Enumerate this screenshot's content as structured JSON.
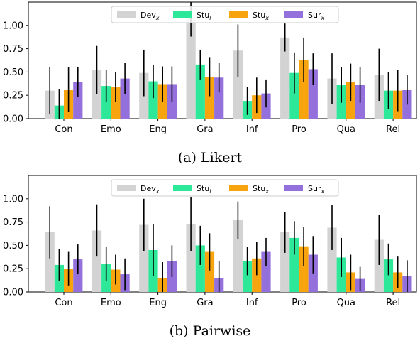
{
  "colors": {
    "Dev": "#d3d3d3",
    "Stu_l": "#2ee89a",
    "Stu_x": "#f7a40f",
    "Sur": "#9370db",
    "error": "#000000"
  },
  "chart_data": [
    {
      "type": "bar",
      "caption": "(a) Likert",
      "categories": [
        "Con",
        "Emo",
        "Eng",
        "Gra",
        "Inf",
        "Pro",
        "Qua",
        "Rel"
      ],
      "ylim": [
        0,
        1.25
      ],
      "yticks": [
        "0.00",
        "0.25",
        "0.50",
        "0.75",
        "1.00"
      ],
      "grid": false,
      "legend_position": "top-center",
      "series": [
        {
          "name": "Dev",
          "sub": "x",
          "color_key": "Dev",
          "values": [
            0.3,
            0.52,
            0.49,
            1.09,
            0.73,
            0.87,
            0.43,
            0.47
          ],
          "errors": [
            0.25,
            0.26,
            0.25,
            0.21,
            0.28,
            0.15,
            0.27,
            0.28
          ]
        },
        {
          "name": "Stu",
          "sub": "l",
          "color_key": "Stu_l",
          "values": [
            0.14,
            0.35,
            0.4,
            0.58,
            0.19,
            0.49,
            0.36,
            0.3
          ],
          "errors": [
            0.18,
            0.17,
            0.18,
            0.16,
            0.15,
            0.22,
            0.19,
            0.2
          ]
        },
        {
          "name": "Stu",
          "sub": "x",
          "color_key": "Stu_x",
          "values": [
            0.31,
            0.34,
            0.37,
            0.45,
            0.25,
            0.63,
            0.39,
            0.3
          ],
          "errors": [
            0.24,
            0.16,
            0.19,
            0.21,
            0.19,
            0.24,
            0.2,
            0.22
          ]
        },
        {
          "name": "Sur",
          "sub": "x",
          "color_key": "Sur",
          "values": [
            0.39,
            0.43,
            0.37,
            0.44,
            0.27,
            0.53,
            0.36,
            0.31
          ],
          "errors": [
            0.16,
            0.17,
            0.19,
            0.16,
            0.15,
            0.17,
            0.19,
            0.16
          ]
        }
      ]
    },
    {
      "type": "bar",
      "caption": "(b) Pairwise",
      "categories": [
        "Con",
        "Emo",
        "Eng",
        "Gra",
        "Inf",
        "Pro",
        "Qua",
        "Rel"
      ],
      "ylim": [
        0,
        1.25
      ],
      "yticks": [
        "0.00",
        "0.25",
        "0.50",
        "0.75",
        "1.00"
      ],
      "grid": false,
      "legend_position": "top-center",
      "series": [
        {
          "name": "Dev",
          "sub": "x",
          "color_key": "Dev",
          "values": [
            0.64,
            0.66,
            0.72,
            0.73,
            0.77,
            0.64,
            0.69,
            0.56
          ],
          "errors": [
            0.28,
            0.28,
            0.28,
            0.29,
            0.2,
            0.22,
            0.24,
            0.27
          ]
        },
        {
          "name": "Stu",
          "sub": "l",
          "color_key": "Stu_l",
          "values": [
            0.29,
            0.3,
            0.45,
            0.5,
            0.33,
            0.58,
            0.37,
            0.35
          ],
          "errors": [
            0.17,
            0.18,
            0.28,
            0.21,
            0.15,
            0.18,
            0.21,
            0.17
          ]
        },
        {
          "name": "Stu",
          "sub": "x",
          "color_key": "Stu_x",
          "values": [
            0.25,
            0.24,
            0.15,
            0.43,
            0.36,
            0.49,
            0.21,
            0.21
          ],
          "errors": [
            0.18,
            0.16,
            0.17,
            0.2,
            0.18,
            0.21,
            0.19,
            0.17
          ]
        },
        {
          "name": "Sur",
          "sub": "x",
          "color_key": "Sur",
          "values": [
            0.35,
            0.19,
            0.33,
            0.15,
            0.43,
            0.4,
            0.14,
            0.17
          ],
          "errors": [
            0.16,
            0.17,
            0.17,
            0.18,
            0.15,
            0.2,
            0.13,
            0.17
          ]
        }
      ]
    }
  ]
}
